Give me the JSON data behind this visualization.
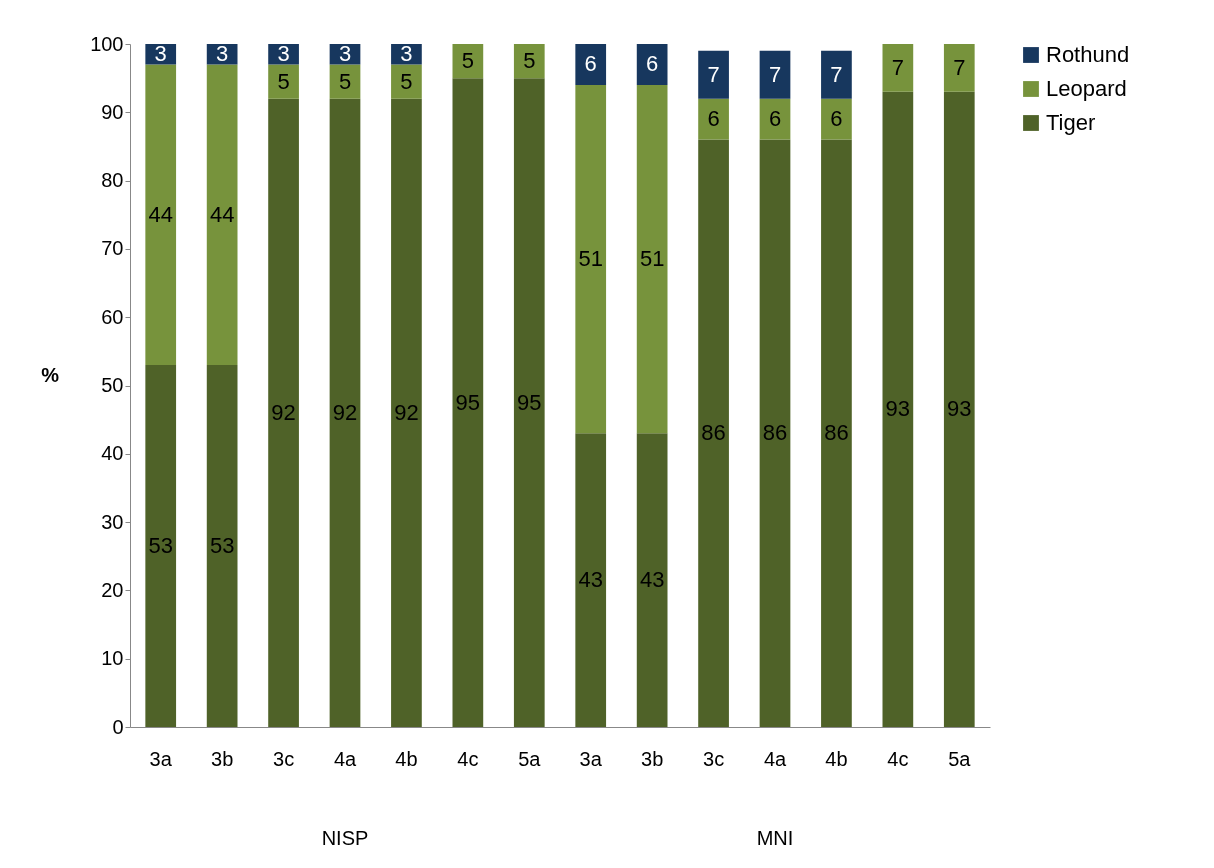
{
  "chart_data": {
    "type": "bar",
    "stacked": true,
    "ylabel": "%",
    "categories": [
      "3a",
      "3b",
      "3c",
      "4a",
      "4b",
      "4c",
      "5a",
      "3a",
      "3b",
      "3c",
      "4a",
      "4b",
      "4c",
      "5a"
    ],
    "series": [
      {
        "name": "Tiger",
        "color": "#4f6228",
        "values": [
          53,
          53,
          92,
          92,
          92,
          95,
          95,
          43,
          43,
          86,
          86,
          86,
          93,
          93
        ]
      },
      {
        "name": "Leopard",
        "color": "#77933c",
        "values": [
          44,
          44,
          5,
          5,
          5,
          5,
          5,
          51,
          51,
          6,
          6,
          6,
          7,
          7
        ]
      },
      {
        "name": "Rothund",
        "color": "#17375e",
        "values": [
          3,
          3,
          3,
          3,
          3,
          null,
          null,
          6,
          6,
          7,
          7,
          7,
          null,
          null
        ]
      }
    ],
    "annotations": [
      "NISP",
      "MNI"
    ],
    "ylim": [
      0,
      100
    ],
    "yticks": [
      0,
      10,
      20,
      30,
      40,
      50,
      60,
      70,
      80,
      90,
      100
    ],
    "grid": false,
    "legend": "right",
    "data_labels": true
  }
}
